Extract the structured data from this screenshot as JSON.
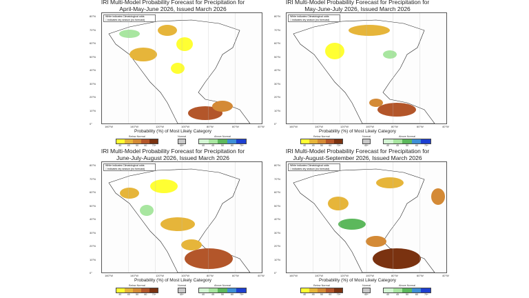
{
  "panels": [
    {
      "title_line1": "IRI Multi-Model Probability Forecast for Precipitation for",
      "title_line2": "April-May-June 2026, Issued March 2026"
    },
    {
      "title_line1": "IRI Multi-Model Probability Forecast for Precipitation for",
      "title_line2": "May-June-July 2026, Issued March 2026"
    },
    {
      "title_line1": "IRI Multi-Model Probability Forecast for Precipitation for",
      "title_line2": "June-July-August 2026, Issued March 2026"
    },
    {
      "title_line1": "IRI Multi-Model Probability Forecast for Precipitation for",
      "title_line2": "July-August-September 2026, Issued March 2026"
    }
  ],
  "note": {
    "line1": "White indicates Climatological odds",
    "line2": "□ indicates dry season (no forecast)"
  },
  "lat_labels": [
    "80°N",
    "70°N",
    "60°N",
    "50°N",
    "40°N",
    "30°N",
    "20°N",
    "10°N",
    "0°"
  ],
  "lon_labels": [
    "160°W",
    "140°W",
    "120°W",
    "100°W",
    "80°W",
    "60°W",
    "40°W"
  ],
  "legend": {
    "title": "Probability (%) of Most Likely Category",
    "below": {
      "label": "Below Normal",
      "values": [
        "40",
        "45",
        "50",
        "60",
        "70+"
      ],
      "colors": [
        "#ffff33",
        "#e6b53a",
        "#d48a36",
        "#b3562a",
        "#7a3210"
      ]
    },
    "normal": {
      "label": "Normal",
      "values": [
        "40+"
      ],
      "colors": [
        "#c8c8c8"
      ]
    },
    "above": {
      "label": "Above Normal",
      "values": [
        "40",
        "45",
        "50",
        "60",
        "70+"
      ],
      "colors": [
        "#d4f5d4",
        "#a8e6a0",
        "#5cb85c",
        "#3e8fd6",
        "#1d3fd1"
      ]
    }
  }
}
